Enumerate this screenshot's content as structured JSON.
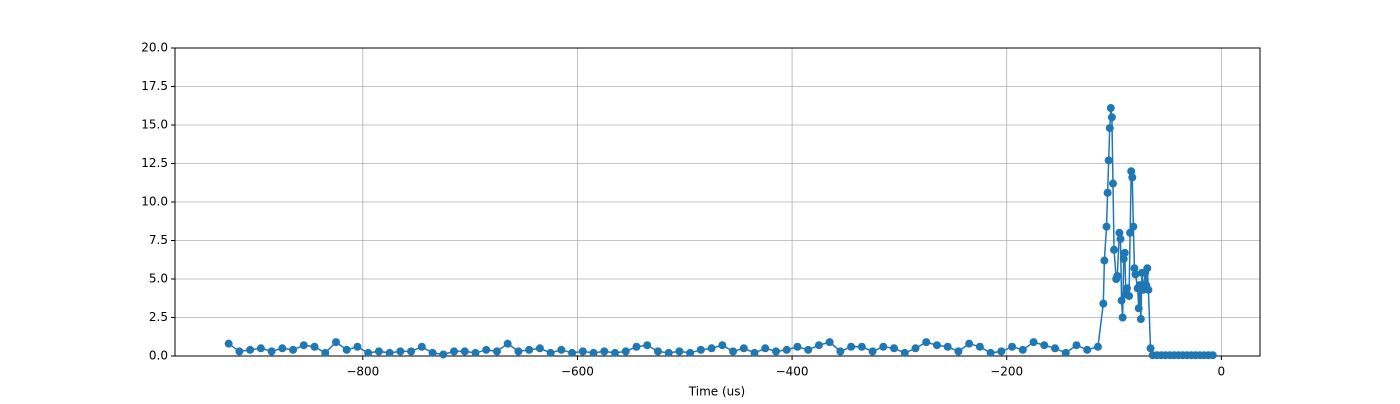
{
  "chart_data": {
    "type": "line",
    "x_label": "Time (us)",
    "grid": true,
    "xlim": [
      -975,
      36
    ],
    "ylim": [
      0,
      20
    ],
    "xticks": [
      {
        "value": -800,
        "label": "−800"
      },
      {
        "value": -600,
        "label": "−600"
      },
      {
        "value": -400,
        "label": "−400"
      },
      {
        "value": -200,
        "label": "−200"
      },
      0
    ],
    "yticks": [
      {
        "value": 0,
        "label": "0.0"
      },
      {
        "value": 2.5,
        "label": "2.5"
      },
      {
        "value": 5,
        "label": "5.0"
      },
      {
        "value": 7.5,
        "label": "7.5"
      },
      {
        "value": 10,
        "label": "10.0"
      },
      {
        "value": 12.5,
        "label": "12.5"
      },
      {
        "value": 15,
        "label": "15.0"
      },
      {
        "value": 17.5,
        "label": "17.5"
      },
      {
        "value": 20,
        "label": "20.0"
      }
    ],
    "series": [
      {
        "color": "#1f77b4",
        "x": [
          -925,
          -915,
          -905,
          -895,
          -885,
          -875,
          -865,
          -855,
          -845,
          -835,
          -825,
          -815,
          -805,
          -795,
          -785,
          -775,
          -765,
          -755,
          -745,
          -735,
          -725,
          -715,
          -705,
          -695,
          -685,
          -675,
          -665,
          -655,
          -645,
          -635,
          -625,
          -615,
          -605,
          -595,
          -585,
          -575,
          -565,
          -555,
          -545,
          -535,
          -525,
          -515,
          -505,
          -495,
          -485,
          -475,
          -465,
          -455,
          -445,
          -435,
          -425,
          -415,
          -405,
          -395,
          -385,
          -375,
          -365,
          -355,
          -345,
          -335,
          -325,
          -315,
          -305,
          -295,
          -285,
          -275,
          -265,
          -255,
          -245,
          -235,
          -225,
          -215,
          -205,
          -195,
          -185,
          -175,
          -165,
          -155,
          -145,
          -135,
          -125,
          -115,
          -110,
          -109,
          -107,
          -106,
          -105,
          -104,
          -103,
          -102,
          -101,
          -100,
          -98,
          -97,
          -95,
          -94,
          -93,
          -92,
          -91,
          -90,
          -89,
          -88,
          -86,
          -85,
          -84,
          -83,
          -82,
          -81,
          -80,
          -78,
          -77,
          -76,
          -75,
          -74,
          -73,
          -71,
          -70,
          -69,
          -68,
          -66,
          -64,
          -60,
          -56,
          -52,
          -48,
          -44,
          -40,
          -36,
          -32,
          -28,
          -24,
          -20,
          -16,
          -12,
          -8
        ],
        "values": [
          0.8,
          0.3,
          0.4,
          0.5,
          0.3,
          0.5,
          0.4,
          0.7,
          0.6,
          0.2,
          0.9,
          0.4,
          0.6,
          0.2,
          0.3,
          0.2,
          0.3,
          0.3,
          0.6,
          0.2,
          0.1,
          0.3,
          0.3,
          0.2,
          0.4,
          0.3,
          0.8,
          0.3,
          0.4,
          0.5,
          0.2,
          0.4,
          0.2,
          0.3,
          0.2,
          0.3,
          0.2,
          0.3,
          0.6,
          0.7,
          0.3,
          0.2,
          0.3,
          0.2,
          0.4,
          0.5,
          0.7,
          0.3,
          0.5,
          0.2,
          0.5,
          0.3,
          0.4,
          0.6,
          0.4,
          0.7,
          0.9,
          0.3,
          0.6,
          0.6,
          0.3,
          0.6,
          0.5,
          0.2,
          0.5,
          0.9,
          0.7,
          0.6,
          0.3,
          0.8,
          0.6,
          0.2,
          0.3,
          0.6,
          0.4,
          0.9,
          0.7,
          0.5,
          0.2,
          0.7,
          0.4,
          0.6,
          3.4,
          6.2,
          8.4,
          10.6,
          12.7,
          14.8,
          16.1,
          15.5,
          11.2,
          6.9,
          5.0,
          5.2,
          8.0,
          7.6,
          3.6,
          2.5,
          6.3,
          6.7,
          4.0,
          4.4,
          3.9,
          8.0,
          12.0,
          11.6,
          8.4,
          5.7,
          5.3,
          4.4,
          3.1,
          4.6,
          2.4,
          5.4,
          4.3,
          5.4,
          4.6,
          5.7,
          4.3,
          0.5,
          0.05,
          0.05,
          0.05,
          0.05,
          0.05,
          0.05,
          0.05,
          0.05,
          0.05,
          0.05,
          0.05,
          0.05,
          0.05,
          0.05,
          0.05
        ]
      }
    ]
  }
}
